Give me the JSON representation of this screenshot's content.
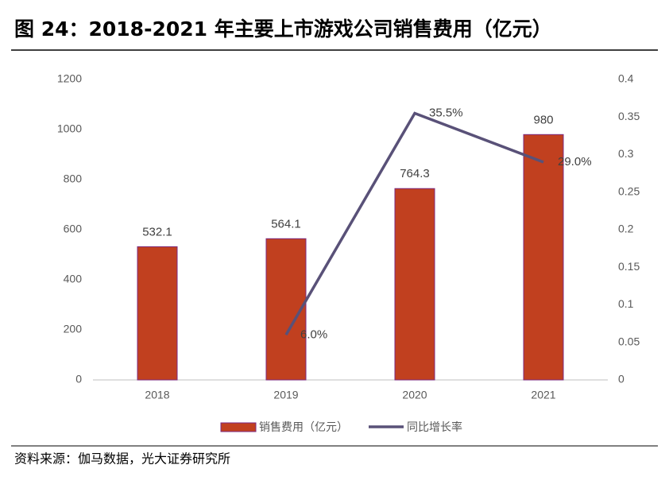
{
  "chart_data": {
    "type": "bar",
    "title": "图 24：2018-2021 年主要上市游戏公司销售费用（亿元）",
    "source": "资料来源：伽马数据，光大证券研究所",
    "categories": [
      "2018",
      "2019",
      "2020",
      "2021"
    ],
    "series": [
      {
        "name": "销售费用（亿元）",
        "type": "bar",
        "color": "#c1401f",
        "values": [
          532.1,
          564.1,
          764.3,
          980
        ]
      },
      {
        "name": "同比增长率",
        "type": "line",
        "axis": "y2",
        "color": "#595178",
        "values": [
          null,
          0.06,
          0.355,
          0.29
        ],
        "value_labels": [
          null,
          "6.0%",
          "35.5%",
          "29.0%"
        ]
      }
    ],
    "ylim": [
      0,
      1200
    ],
    "yticks": [
      0,
      200,
      400,
      600,
      800,
      1000,
      1200
    ],
    "y2lim": [
      0,
      0.4
    ],
    "y2ticks": [
      0,
      0.05,
      0.1,
      0.15,
      0.2,
      0.25,
      0.3,
      0.35,
      0.4
    ]
  }
}
